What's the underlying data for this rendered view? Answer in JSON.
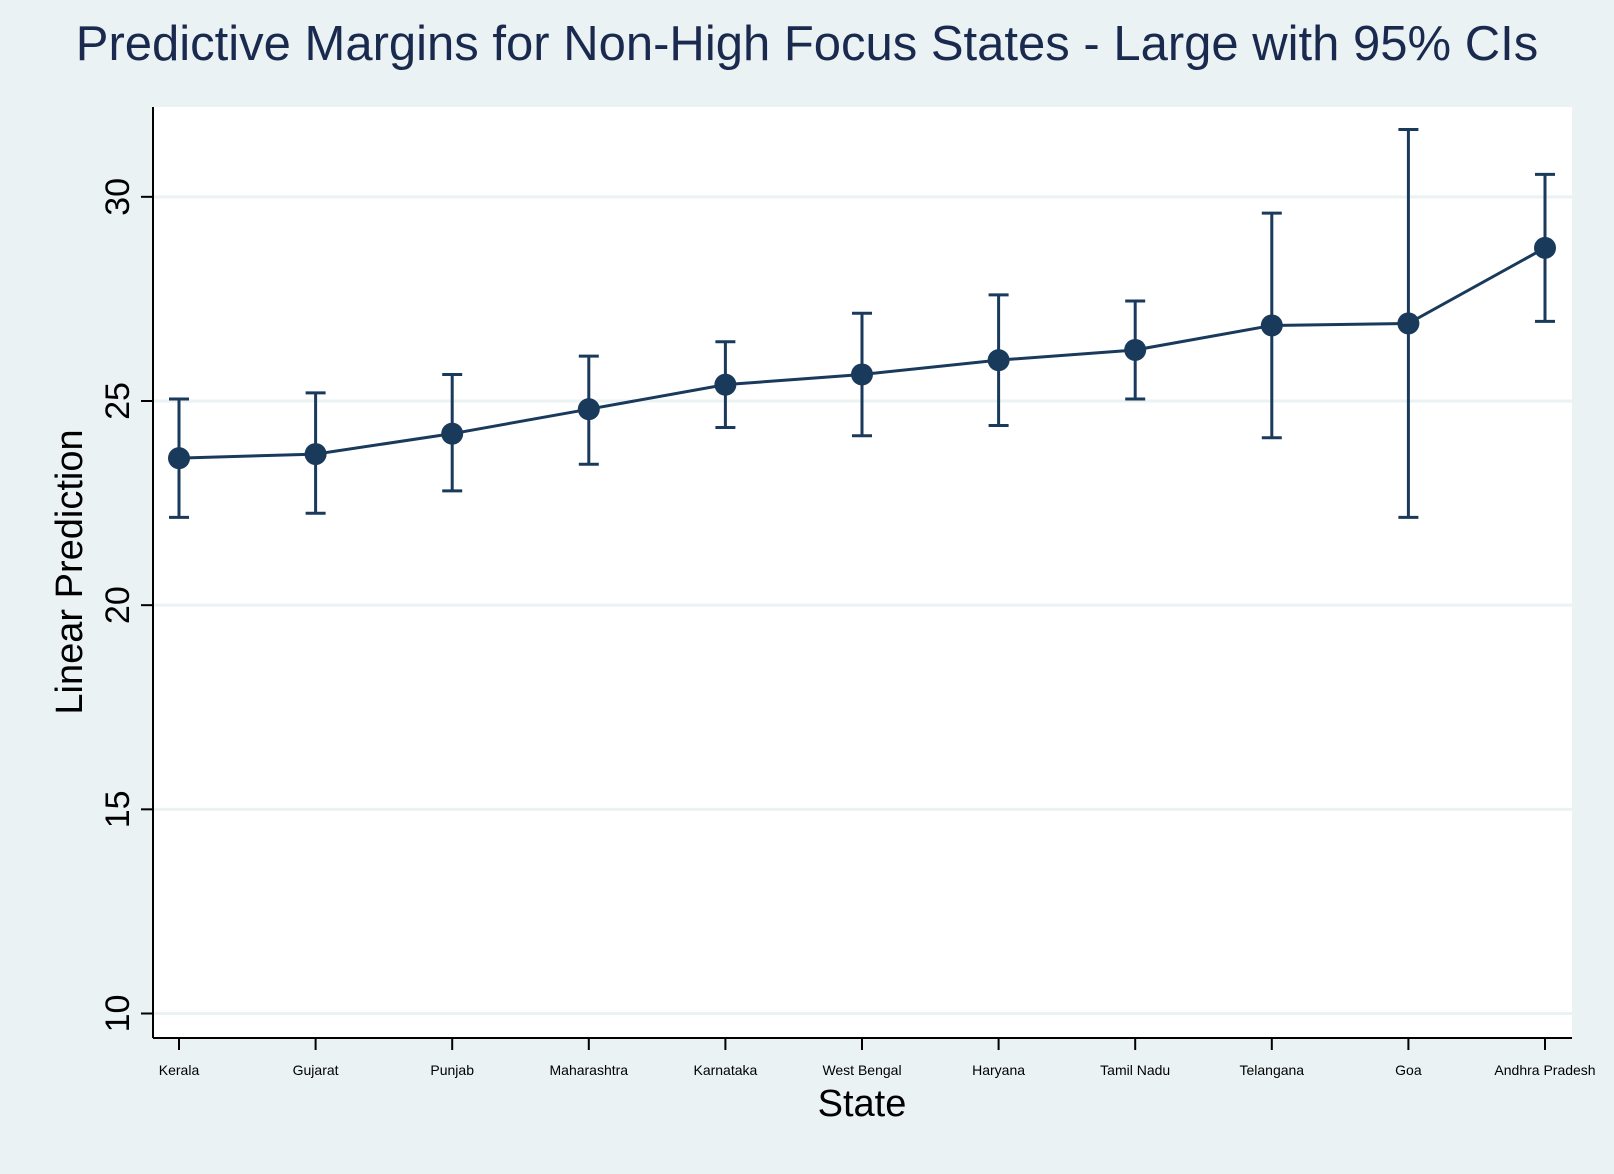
{
  "chart_data": {
    "type": "line",
    "title": "Predictive Margins for Non-High Focus States - Large with 95% CIs",
    "xlabel": "State",
    "ylabel": "Linear Prediction",
    "categories": [
      "Kerala",
      "Gujarat",
      "Punjab",
      "Maharashtra",
      "Karnataka",
      "West Bengal",
      "Haryana",
      "Tamil Nadu",
      "Telangana",
      "Goa",
      "Andhra Pradesh"
    ],
    "series": [
      {
        "values": [
          23.6,
          23.7,
          24.2,
          24.8,
          25.4,
          25.65,
          26.0,
          26.25,
          26.85,
          26.9,
          28.75
        ],
        "ci_lower": [
          22.15,
          22.25,
          22.8,
          23.45,
          24.35,
          24.15,
          24.4,
          25.05,
          24.1,
          22.15,
          26.95
        ],
        "ci_upper": [
          25.05,
          25.2,
          25.65,
          26.1,
          26.45,
          27.15,
          27.6,
          27.45,
          29.6,
          31.65,
          30.55
        ]
      }
    ],
    "ylim": [
      9.4,
      32.2
    ],
    "yticks": [
      10,
      15,
      20,
      25,
      30
    ],
    "grid": true,
    "colors": {
      "series": "#1a3a5c",
      "background": "#eaf2f3",
      "plot_background": "#ffffff",
      "grid": "#eaf2f3",
      "title": "#1a2a4f"
    }
  }
}
